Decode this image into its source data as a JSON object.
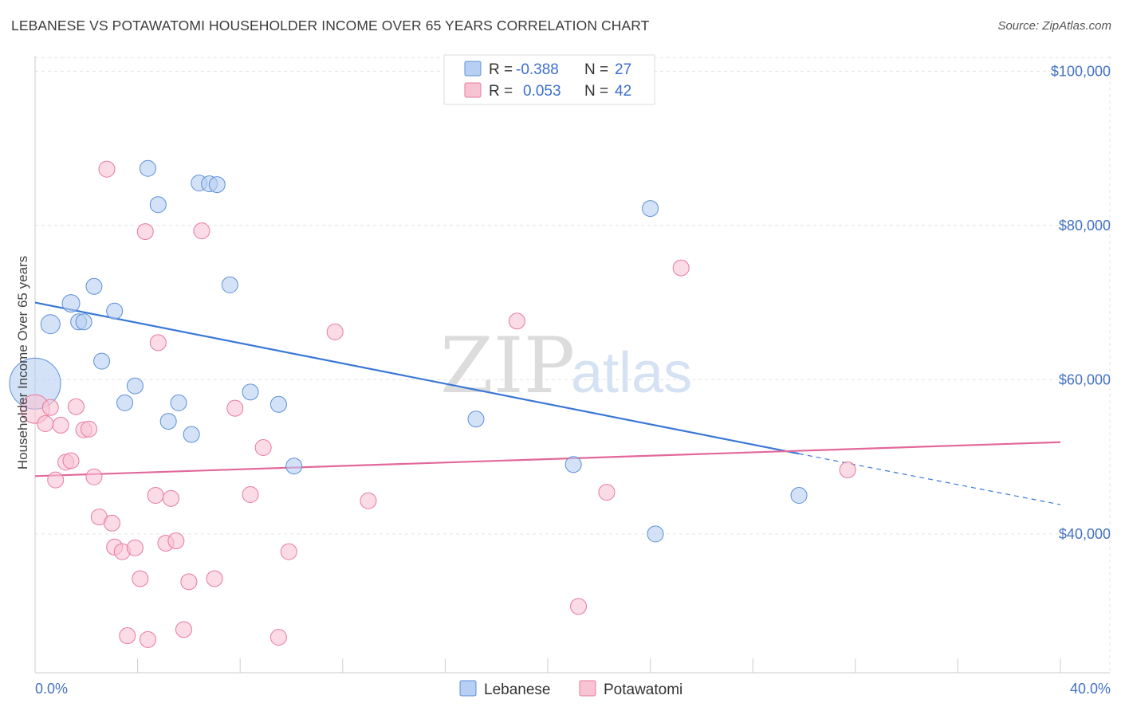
{
  "header": {
    "title": "LEBANESE VS POTAWATOMI HOUSEHOLDER INCOME OVER 65 YEARS CORRELATION CHART",
    "source": "Source: ZipAtlas.com"
  },
  "watermark": {
    "zip": "ZIP",
    "atlas": "atlas"
  },
  "legend": {
    "rows": [
      {
        "r_label": "R = ",
        "r_value": "-0.388",
        "n_label": "N = ",
        "n_value": "27"
      },
      {
        "r_label": "R = ",
        "r_value": "0.053",
        "n_label": "N = ",
        "n_value": "42"
      }
    ]
  },
  "chart_data": {
    "type": "scatter",
    "title": "LEBANESE VS POTAWATOMI HOUSEHOLDER INCOME OVER 65 YEARS CORRELATION CHART",
    "ylabel": "Householder Income Over 65 years",
    "xlabel": "",
    "xlim": [
      0,
      40
    ],
    "ylim": [
      22000,
      102000
    ],
    "x_tick_labels": [
      {
        "value": 0,
        "label": "0.0%"
      },
      {
        "value": 40,
        "label": "40.0%"
      }
    ],
    "y_tick_labels": [
      {
        "value": 40000,
        "label": "$40,000"
      },
      {
        "value": 60000,
        "label": "$60,000"
      },
      {
        "value": 80000,
        "label": "$80,000"
      },
      {
        "value": 100000,
        "label": "$100,000"
      }
    ],
    "grid": true,
    "legend_position": "top-center",
    "colors": {
      "lebanese_fill": "#b7cff2",
      "lebanese_stroke": "#5b8fd9",
      "lebanese_line": "#3a77d6",
      "potawatomi_fill": "#f8c3d3",
      "potawatomi_stroke": "#e8799c",
      "potawatomi_line": "#e2689a"
    },
    "series": [
      {
        "name": "Lebanese",
        "points": [
          [
            0.0,
            59500
          ],
          [
            0.6,
            67200
          ],
          [
            1.7,
            67500
          ],
          [
            1.4,
            69900
          ],
          [
            1.9,
            67500
          ],
          [
            2.3,
            72100
          ],
          [
            2.6,
            62400
          ],
          [
            3.1,
            68900
          ],
          [
            3.5,
            57000
          ],
          [
            3.9,
            59200
          ],
          [
            4.4,
            87400
          ],
          [
            4.8,
            82700
          ],
          [
            5.2,
            54600
          ],
          [
            5.6,
            57000
          ],
          [
            6.1,
            52900
          ],
          [
            6.4,
            85500
          ],
          [
            6.8,
            85400
          ],
          [
            7.1,
            85300
          ],
          [
            7.6,
            72300
          ],
          [
            8.4,
            58400
          ],
          [
            9.5,
            56800
          ],
          [
            10.1,
            48800
          ],
          [
            17.2,
            54900
          ],
          [
            21.0,
            49000
          ],
          [
            24.0,
            82200
          ],
          [
            24.2,
            40000
          ],
          [
            29.8,
            45000
          ]
        ],
        "sizes": [
          32,
          12,
          10,
          11,
          10,
          10,
          10,
          10,
          10,
          10,
          10,
          10,
          10,
          10,
          10,
          10,
          10,
          10,
          10,
          10,
          10,
          10,
          10,
          10,
          10,
          10,
          10
        ],
        "trend": {
          "x": [
            0,
            29.8
          ],
          "y": [
            70000,
            50400
          ],
          "dashed_to": [
            40,
            43800
          ]
        }
      },
      {
        "name": "Potawatomi",
        "points": [
          [
            0.0,
            56200
          ],
          [
            0.4,
            54300
          ],
          [
            0.6,
            56400
          ],
          [
            0.8,
            47000
          ],
          [
            1.0,
            54100
          ],
          [
            1.2,
            49300
          ],
          [
            1.4,
            49500
          ],
          [
            1.6,
            56500
          ],
          [
            1.9,
            53500
          ],
          [
            2.1,
            53600
          ],
          [
            2.3,
            47400
          ],
          [
            2.5,
            42200
          ],
          [
            2.8,
            87300
          ],
          [
            3.0,
            41400
          ],
          [
            3.1,
            38300
          ],
          [
            3.4,
            37700
          ],
          [
            3.6,
            26800
          ],
          [
            3.9,
            38200
          ],
          [
            4.1,
            34200
          ],
          [
            4.3,
            79200
          ],
          [
            4.4,
            26300
          ],
          [
            4.7,
            45000
          ],
          [
            4.8,
            64800
          ],
          [
            5.1,
            38800
          ],
          [
            5.3,
            44600
          ],
          [
            5.5,
            39100
          ],
          [
            5.8,
            27600
          ],
          [
            6.0,
            33800
          ],
          [
            6.5,
            79300
          ],
          [
            7.0,
            34200
          ],
          [
            7.8,
            56300
          ],
          [
            8.4,
            45100
          ],
          [
            8.9,
            51200
          ],
          [
            9.5,
            26600
          ],
          [
            9.9,
            37700
          ],
          [
            11.7,
            66200
          ],
          [
            13.0,
            44300
          ],
          [
            18.8,
            67600
          ],
          [
            21.2,
            30600
          ],
          [
            22.3,
            45400
          ],
          [
            25.2,
            74500
          ],
          [
            31.7,
            48300
          ]
        ],
        "sizes": [
          18,
          10,
          10,
          10,
          10,
          10,
          10,
          10,
          10,
          10,
          10,
          10,
          10,
          10,
          10,
          10,
          10,
          10,
          10,
          10,
          10,
          10,
          10,
          10,
          10,
          10,
          10,
          10,
          10,
          10,
          10,
          10,
          10,
          10,
          10,
          10,
          10,
          10,
          10,
          10,
          10,
          10
        ],
        "trend": {
          "x": [
            0,
            40
          ],
          "y": [
            47500,
            51900
          ]
        }
      }
    ]
  }
}
